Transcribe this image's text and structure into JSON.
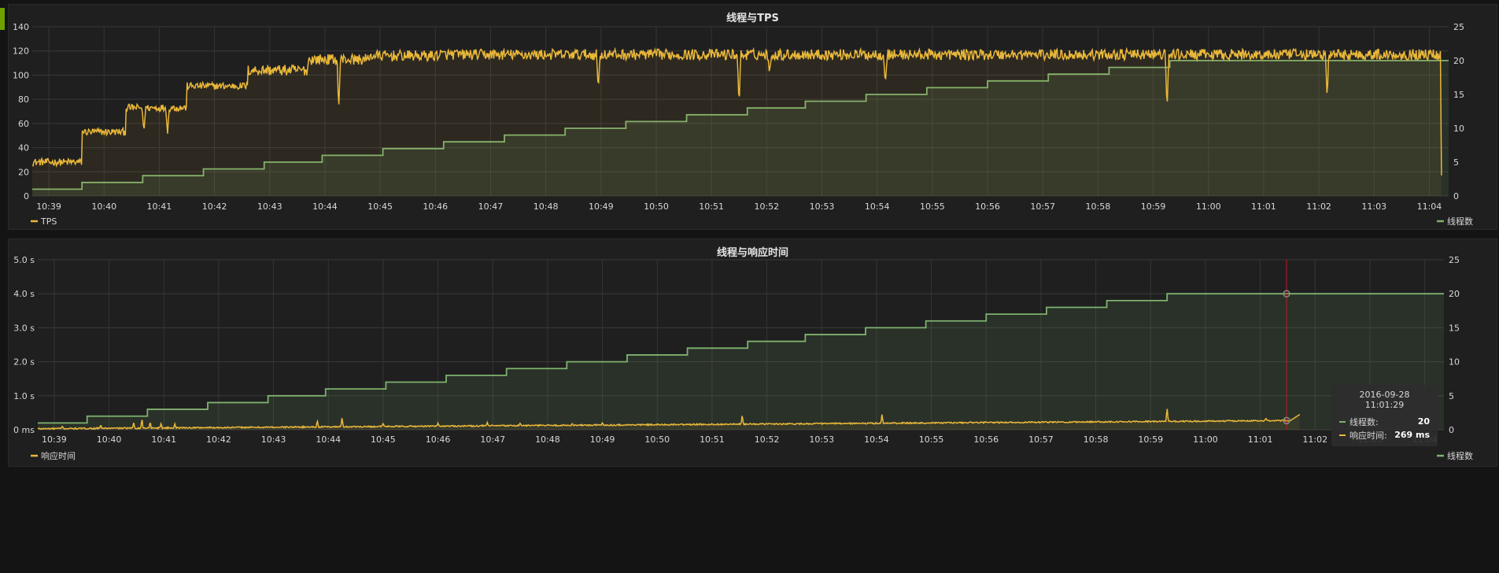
{
  "chart_data": [
    {
      "type": "line",
      "title": "线程与TPS",
      "x_ticks": [
        "10:39",
        "10:40",
        "10:41",
        "10:42",
        "10:43",
        "10:44",
        "10:45",
        "10:46",
        "10:47",
        "10:48",
        "10:49",
        "10:50",
        "10:51",
        "10:52",
        "10:53",
        "10:54",
        "10:55",
        "10:56",
        "10:57",
        "10:58",
        "10:59",
        "11:00",
        "11:01",
        "11:02",
        "11:03",
        "11:04"
      ],
      "y_left_ticks": [
        "0",
        "20",
        "40",
        "60",
        "80",
        "100",
        "120",
        "140"
      ],
      "y_right_ticks": [
        "0",
        "5",
        "10",
        "15",
        "20",
        "25"
      ],
      "ylim_left": [
        0,
        140
      ],
      "ylim_right": [
        0,
        25
      ],
      "xlim_minutes": [
        38.7,
        64.35
      ],
      "grid": true,
      "series": [
        {
          "name": "TPS",
          "axis": "left",
          "color": "#eab839",
          "plateaus": [
            {
              "start": 38.7,
              "value": 28
            },
            {
              "start": 39.6,
              "value": 53
            },
            {
              "start": 40.4,
              "value": 73
            },
            {
              "start": 41.5,
              "value": 91
            },
            {
              "start": 42.6,
              "value": 104
            },
            {
              "start": 43.7,
              "value": 113
            },
            {
              "start": 44.8,
              "value": 116
            },
            {
              "start": 46.0,
              "value": 117
            },
            {
              "start": 49.0,
              "value": 117
            },
            {
              "start": 60.0,
              "value": 117
            },
            {
              "start": 64.1,
              "value": 117
            }
          ],
          "dips": [
            {
              "x": 40.72,
              "value": 52
            },
            {
              "x": 41.15,
              "value": 51
            },
            {
              "x": 44.25,
              "value": 71
            },
            {
              "x": 48.95,
              "value": 87
            },
            {
              "x": 51.5,
              "value": 73
            },
            {
              "x": 52.05,
              "value": 100
            },
            {
              "x": 54.15,
              "value": 92
            },
            {
              "x": 59.25,
              "value": 69
            },
            {
              "x": 62.15,
              "value": 80
            }
          ],
          "end": {
            "x": 64.2,
            "value": 17
          }
        },
        {
          "name": "线程数",
          "axis": "right",
          "color": "#7eb26d",
          "steps": [
            {
              "start": 38.7,
              "value": 1
            },
            {
              "start": 39.6,
              "value": 2
            },
            {
              "start": 40.7,
              "value": 3
            },
            {
              "start": 41.8,
              "value": 4
            },
            {
              "start": 42.9,
              "value": 5
            },
            {
              "start": 43.95,
              "value": 6
            },
            {
              "start": 45.05,
              "value": 7
            },
            {
              "start": 46.15,
              "value": 8
            },
            {
              "start": 47.25,
              "value": 9
            },
            {
              "start": 48.35,
              "value": 10
            },
            {
              "start": 49.45,
              "value": 11
            },
            {
              "start": 50.55,
              "value": 12
            },
            {
              "start": 51.65,
              "value": 13
            },
            {
              "start": 52.7,
              "value": 14
            },
            {
              "start": 53.8,
              "value": 15
            },
            {
              "start": 54.9,
              "value": 16
            },
            {
              "start": 56.0,
              "value": 17
            },
            {
              "start": 57.1,
              "value": 18
            },
            {
              "start": 58.2,
              "value": 19
            },
            {
              "start": 59.3,
              "value": 20
            }
          ]
        }
      ],
      "legend": {
        "left": "TPS",
        "right": "线程数"
      }
    },
    {
      "type": "line",
      "title": "线程与响应时间",
      "x_ticks": [
        "10:39",
        "10:40",
        "10:41",
        "10:42",
        "10:43",
        "10:44",
        "10:45",
        "10:46",
        "10:47",
        "10:48",
        "10:49",
        "10:50",
        "10:51",
        "10:52",
        "10:53",
        "10:54",
        "10:55",
        "10:56",
        "10:57",
        "10:58",
        "10:59",
        "11:00",
        "11:01",
        "11:02",
        "11:03",
        "11:04"
      ],
      "y_left_ticks": [
        "0 ms",
        "1.0 s",
        "2.0 s",
        "3.0 s",
        "4.0 s",
        "5.0 s"
      ],
      "y_right_ticks": [
        "0",
        "5",
        "10",
        "15",
        "20",
        "25"
      ],
      "ylim_left": [
        0,
        5
      ],
      "ylim_right": [
        0,
        25
      ],
      "xlim_minutes": [
        38.7,
        64.35
      ],
      "grid": true,
      "series": [
        {
          "name": "响应时间",
          "axis": "left",
          "color": "#eab839",
          "baseline_start": 0.03,
          "baseline_end": 0.27,
          "spikes": [
            {
              "x": 39.15,
              "value": 0.12
            },
            {
              "x": 39.85,
              "value": 0.15
            },
            {
              "x": 40.45,
              "value": 0.22
            },
            {
              "x": 40.6,
              "value": 0.35
            },
            {
              "x": 40.75,
              "value": 0.25
            },
            {
              "x": 40.95,
              "value": 0.2
            },
            {
              "x": 41.2,
              "value": 0.18
            },
            {
              "x": 43.8,
              "value": 0.28
            },
            {
              "x": 44.25,
              "value": 0.38
            },
            {
              "x": 45.0,
              "value": 0.2
            },
            {
              "x": 46.0,
              "value": 0.2
            },
            {
              "x": 46.9,
              "value": 0.22
            },
            {
              "x": 47.5,
              "value": 0.2
            },
            {
              "x": 48.45,
              "value": 0.18
            },
            {
              "x": 49.0,
              "value": 0.22
            },
            {
              "x": 51.55,
              "value": 0.45
            },
            {
              "x": 54.1,
              "value": 0.47
            },
            {
              "x": 59.3,
              "value": 0.68
            },
            {
              "x": 61.1,
              "value": 0.35
            }
          ]
        },
        {
          "name": "线程数",
          "axis": "right",
          "color": "#7eb26d",
          "steps": [
            {
              "start": 38.55,
              "value": 1
            },
            {
              "start": 39.6,
              "value": 2
            },
            {
              "start": 40.7,
              "value": 3
            },
            {
              "start": 41.8,
              "value": 4
            },
            {
              "start": 42.9,
              "value": 5
            },
            {
              "start": 43.95,
              "value": 6
            },
            {
              "start": 45.05,
              "value": 7
            },
            {
              "start": 46.15,
              "value": 8
            },
            {
              "start": 47.25,
              "value": 9
            },
            {
              "start": 48.35,
              "value": 10
            },
            {
              "start": 49.45,
              "value": 11
            },
            {
              "start": 50.55,
              "value": 12
            },
            {
              "start": 51.65,
              "value": 13
            },
            {
              "start": 52.7,
              "value": 14
            },
            {
              "start": 53.8,
              "value": 15
            },
            {
              "start": 54.9,
              "value": 16
            },
            {
              "start": 56.0,
              "value": 17
            },
            {
              "start": 57.1,
              "value": 18
            },
            {
              "start": 58.2,
              "value": 19
            },
            {
              "start": 59.3,
              "value": 20
            }
          ]
        }
      ],
      "legend": {
        "left": "响应时间",
        "right": "线程数"
      },
      "cursor_x": 61.48,
      "tooltip": {
        "time": "2016-09-28 11:01:29",
        "rows": [
          {
            "label": "线程数:",
            "value": "20",
            "color": "#7eb26d"
          },
          {
            "label": "响应时间:",
            "value": "269 ms",
            "color": "#eab839"
          }
        ]
      }
    }
  ]
}
